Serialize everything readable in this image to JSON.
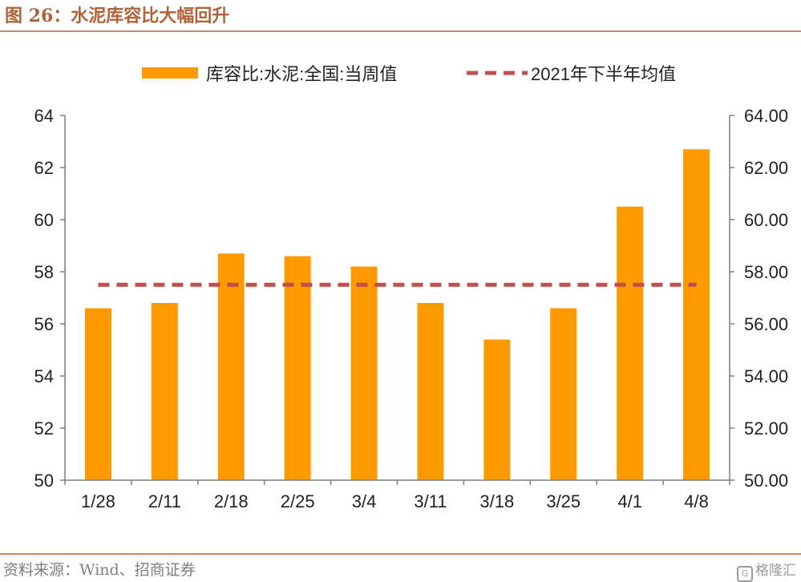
{
  "figure": {
    "title": "图 26：水泥库容比大幅回升",
    "source": "资料来源：Wind、招商证券",
    "watermark": "格隆汇"
  },
  "colors": {
    "bar": "#ff9900",
    "avg_line": "#c0504d",
    "axis": "#7f7f7f",
    "title": "#b0623a"
  },
  "chart_data": {
    "type": "bar",
    "categories": [
      "1/28",
      "2/11",
      "2/18",
      "2/25",
      "3/4",
      "3/11",
      "3/18",
      "3/25",
      "4/1",
      "4/8"
    ],
    "series": [
      {
        "name": "库容比:水泥:全国:当周值",
        "type": "bar",
        "values": [
          56.6,
          56.8,
          58.7,
          58.6,
          58.2,
          56.8,
          55.4,
          56.6,
          60.5,
          62.7
        ]
      },
      {
        "name": "2021年下半年均值",
        "type": "line",
        "style": "dashed",
        "values": [
          57.5,
          57.5,
          57.5,
          57.5,
          57.5,
          57.5,
          57.5,
          57.5,
          57.5,
          57.5
        ]
      }
    ],
    "ylim": [
      50,
      64
    ],
    "yticks_left": [
      "50",
      "52",
      "54",
      "56",
      "58",
      "60",
      "62",
      "64"
    ],
    "yticks_right": [
      "50.00",
      "52.00",
      "54.00",
      "56.00",
      "58.00",
      "60.00",
      "62.00",
      "64.00"
    ],
    "legend_position": "top",
    "grid": false
  }
}
